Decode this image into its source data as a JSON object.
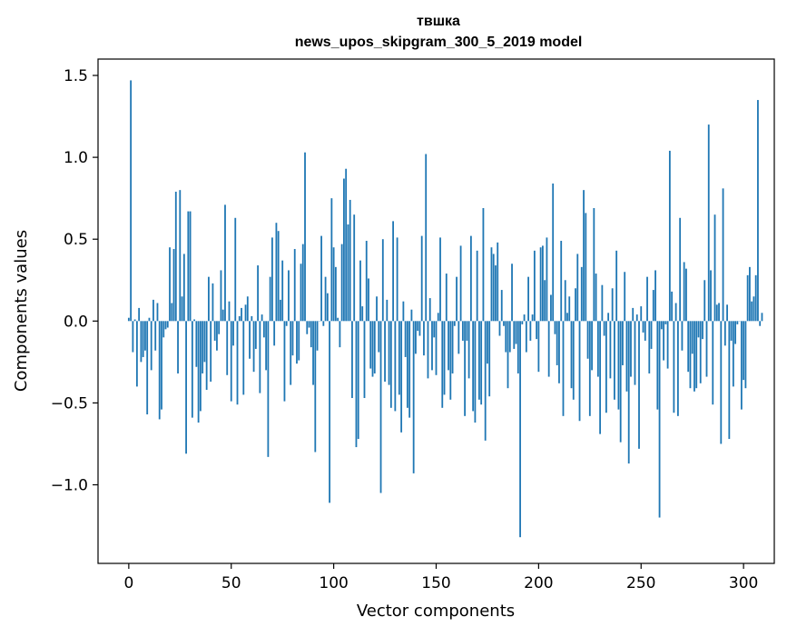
{
  "chart_data": {
    "type": "bar",
    "title_line1": "твшка",
    "title_line2": "news_upos_skipgram_300_5_2019 model",
    "xlabel": "Vector components",
    "ylabel": "Components values",
    "xlim": [
      -15,
      315
    ],
    "ylim": [
      -1.48,
      1.6
    ],
    "xticks": [
      0,
      50,
      100,
      150,
      200,
      250,
      300
    ],
    "yticks": [
      -1.0,
      -0.5,
      0.0,
      0.5,
      1.0,
      1.5
    ],
    "xtick_labels": [
      "0",
      "50",
      "100",
      "150",
      "200",
      "250",
      "300"
    ],
    "ytick_labels": [
      "−1.0",
      "−0.5",
      "0.0",
      "0.5",
      "1.0",
      "1.5"
    ],
    "bar_color": "#1f77b4",
    "values": [
      0.02,
      1.47,
      -0.19,
      0.01,
      -0.4,
      0.08,
      -0.25,
      -0.22,
      -0.18,
      -0.57,
      0.02,
      -0.3,
      0.13,
      -0.18,
      0.11,
      -0.6,
      -0.54,
      -0.1,
      -0.05,
      -0.04,
      0.45,
      0.11,
      0.44,
      0.79,
      -0.32,
      0.8,
      0.15,
      0.41,
      -0.81,
      0.67,
      0.67,
      -0.59,
      0.01,
      -0.28,
      -0.62,
      -0.55,
      -0.32,
      -0.25,
      -0.42,
      0.27,
      -0.37,
      0.23,
      -0.12,
      -0.18,
      -0.08,
      0.31,
      0.07,
      0.71,
      -0.33,
      0.12,
      -0.49,
      -0.15,
      0.63,
      -0.51,
      0.03,
      0.08,
      -0.45,
      0.1,
      0.15,
      -0.23,
      0.03,
      -0.31,
      -0.17,
      0.34,
      -0.44,
      0.04,
      -0.1,
      -0.3,
      -0.83,
      0.27,
      0.51,
      -0.15,
      0.6,
      0.55,
      0.13,
      0.37,
      -0.49,
      -0.03,
      0.31,
      -0.39,
      -0.21,
      0.44,
      -0.26,
      -0.24,
      0.35,
      0.47,
      1.03,
      -0.08,
      -0.04,
      -0.16,
      -0.39,
      -0.8,
      -0.18,
      0.0,
      0.52,
      -0.03,
      0.27,
      0.17,
      -1.11,
      0.75,
      0.45,
      0.33,
      0.02,
      -0.16,
      0.47,
      0.87,
      0.93,
      0.59,
      0.74,
      -0.47,
      0.65,
      -0.77,
      -0.72,
      0.37,
      0.09,
      -0.47,
      0.49,
      0.26,
      -0.29,
      -0.34,
      -0.32,
      0.15,
      -0.19,
      -1.05,
      0.5,
      -0.37,
      0.13,
      -0.39,
      -0.53,
      0.61,
      -0.55,
      0.51,
      -0.45,
      -0.68,
      0.12,
      -0.22,
      -0.53,
      -0.59,
      0.07,
      -0.93,
      -0.2,
      -0.06,
      -0.09,
      0.52,
      -0.21,
      1.02,
      -0.35,
      0.14,
      -0.3,
      -0.1,
      -0.33,
      0.05,
      0.51,
      -0.53,
      -0.45,
      0.29,
      -0.3,
      -0.48,
      -0.32,
      -0.03,
      0.27,
      -0.2,
      0.46,
      -0.12,
      -0.58,
      -0.12,
      -0.35,
      0.52,
      -0.55,
      -0.62,
      0.43,
      -0.48,
      -0.51,
      0.69,
      -0.73,
      -0.26,
      -0.46,
      0.45,
      0.41,
      0.34,
      0.48,
      -0.09,
      0.19,
      -0.03,
      -0.19,
      -0.41,
      -0.19,
      0.35,
      -0.17,
      -0.14,
      -0.32,
      -1.32,
      -0.02,
      0.04,
      -0.19,
      0.27,
      -0.12,
      0.04,
      0.43,
      -0.11,
      -0.31,
      0.45,
      0.46,
      0.25,
      0.51,
      -0.34,
      0.16,
      0.84,
      -0.08,
      -0.27,
      -0.38,
      0.49,
      -0.58,
      0.25,
      0.05,
      0.15,
      -0.41,
      -0.48,
      0.2,
      0.41,
      -0.61,
      0.33,
      0.8,
      0.66,
      -0.23,
      -0.58,
      -0.3,
      0.69,
      0.29,
      -0.34,
      -0.69,
      0.22,
      -0.09,
      -0.56,
      0.05,
      -0.35,
      0.2,
      -0.48,
      0.43,
      -0.54,
      -0.74,
      -0.27,
      0.3,
      -0.43,
      -0.87,
      -0.34,
      0.08,
      -0.39,
      0.04,
      -0.78,
      0.09,
      -0.07,
      -0.12,
      0.27,
      -0.32,
      -0.17,
      0.19,
      0.31,
      -0.54,
      -1.2,
      -0.05,
      -0.24,
      -0.02,
      -0.29,
      1.04,
      0.18,
      -0.56,
      0.11,
      -0.58,
      0.63,
      -0.18,
      0.36,
      0.32,
      -0.31,
      -0.41,
      -0.2,
      -0.43,
      -0.41,
      -0.1,
      -0.38,
      -0.11,
      0.25,
      -0.34,
      1.2,
      0.31,
      -0.51,
      0.65,
      0.1,
      0.11,
      -0.75,
      0.81,
      -0.15,
      0.1,
      -0.72,
      -0.12,
      -0.4,
      -0.14,
      -0.02,
      0.0,
      -0.54,
      -0.36,
      -0.41,
      0.28,
      0.33,
      0.12,
      0.15,
      0.28,
      1.35,
      -0.03,
      0.05
    ]
  }
}
